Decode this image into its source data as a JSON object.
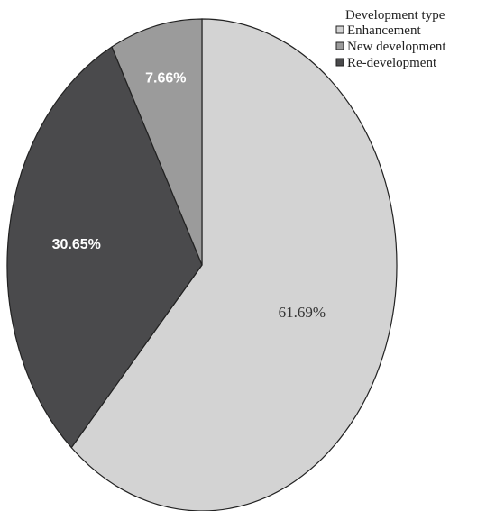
{
  "chart_data": {
    "type": "pie",
    "title": "",
    "legend": {
      "title": "Development type",
      "placement": "top-right"
    },
    "slices": [
      {
        "label": "Enhancement",
        "value": 61.69,
        "value_label": "61.69%",
        "color": "#d3d3d3",
        "text_color": "#333333"
      },
      {
        "label": "Re-development",
        "value": 30.65,
        "value_label": "30.65%",
        "color": "#4a4a4c",
        "text_color": "#ffffff"
      },
      {
        "label": "New development",
        "value": 7.66,
        "value_label": "7.66%",
        "color": "#9b9b9b",
        "text_color": "#ffffff"
      }
    ],
    "legend_order": [
      "Enhancement",
      "New development",
      "Re-development"
    ]
  }
}
